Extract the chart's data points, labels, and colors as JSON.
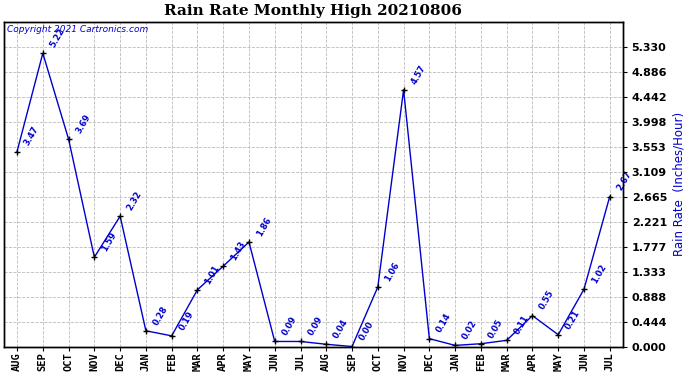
{
  "title": "Rain Rate Monthly High 20210806",
  "ylabel_right": "Rain Rate  (Inches/Hour)",
  "copyright": "Copyright 2021 Cartronics.com",
  "months": [
    "AUG",
    "SEP",
    "OCT",
    "NOV",
    "DEC",
    "JAN",
    "FEB",
    "MAR",
    "APR",
    "MAY",
    "JUN",
    "JUL",
    "AUG",
    "SEP",
    "OCT",
    "NOV",
    "DEC",
    "JAN",
    "FEB",
    "MAR",
    "APR",
    "MAY",
    "JUN",
    "JUL"
  ],
  "values": [
    3.47,
    5.22,
    3.69,
    1.59,
    2.32,
    0.28,
    0.19,
    1.01,
    1.43,
    1.86,
    0.09,
    0.09,
    0.04,
    0.0,
    1.06,
    4.57,
    0.14,
    0.02,
    0.05,
    0.11,
    0.55,
    0.21,
    1.02,
    2.67
  ],
  "labels": [
    "3.47",
    "5.22",
    "3.69",
    "1.59",
    "2.32",
    "0.28",
    "0.19",
    "1.01",
    "1.43",
    "1.86",
    "0.09",
    "0.09",
    "0.04",
    "0.00",
    "1.06",
    "4.57",
    "0.14",
    "0.02",
    "0.05",
    "0.11",
    "0.55",
    "0.21",
    "1.02",
    "2.67"
  ],
  "line_color": "#0000cc",
  "marker_color": "#000000",
  "background_color": "#ffffff",
  "grid_color": "#bbbbbb",
  "title_color": "#000000",
  "ylabel_color": "#0000cc",
  "copyright_color": "#0000cc",
  "ylim": [
    0.0,
    5.774
  ],
  "yticks": [
    0.0,
    0.444,
    0.888,
    1.333,
    1.777,
    2.221,
    2.665,
    3.109,
    3.553,
    3.998,
    4.442,
    4.886,
    5.33
  ],
  "ytick_labels": [
    "0.000",
    "0.444",
    "0.888",
    "1.333",
    "1.777",
    "2.221",
    "2.665",
    "3.109",
    "3.553",
    "3.998",
    "4.442",
    "4.886",
    "5.330"
  ]
}
